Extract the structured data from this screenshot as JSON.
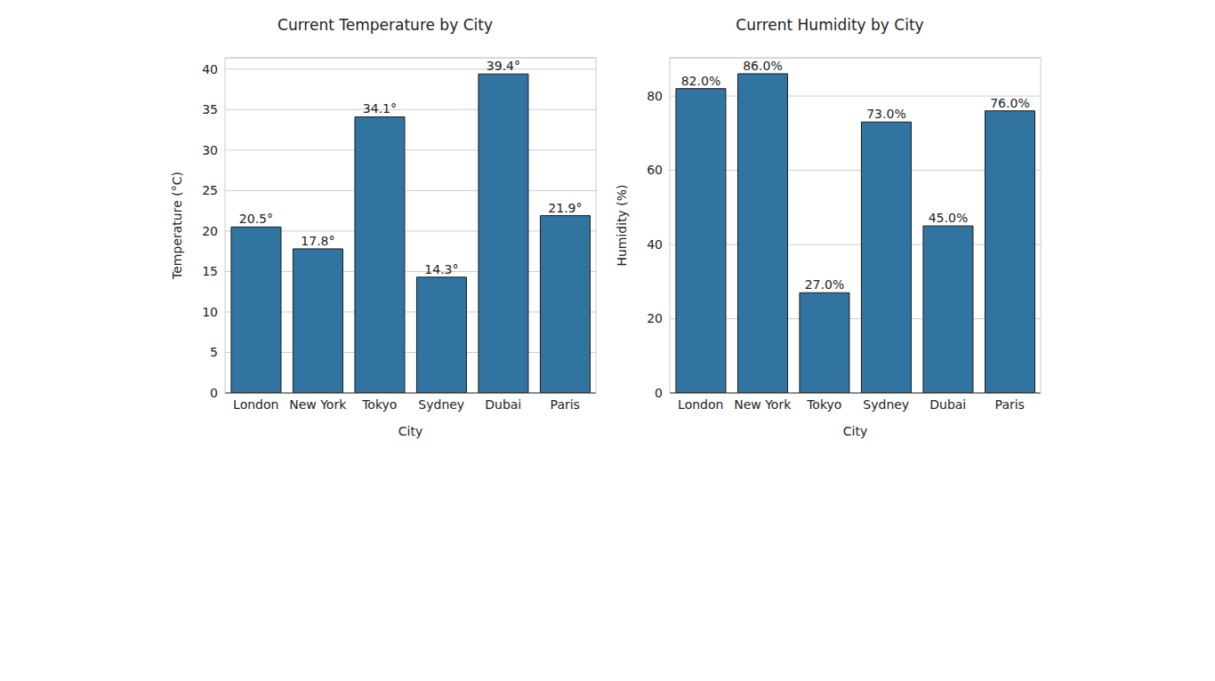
{
  "chart_data": [
    {
      "type": "bar",
      "title": "Current Temperature by City",
      "x_label": "City",
      "y_label": "Temperature (°C)",
      "categories": [
        "London",
        "New York",
        "Tokyo",
        "Sydney",
        "Dubai",
        "Paris"
      ],
      "values": [
        20.5,
        17.8,
        34.1,
        14.3,
        39.4,
        21.9
      ],
      "value_labels": [
        "20.5°",
        "17.8°",
        "34.1°",
        "14.3°",
        "39.4°",
        "21.9°"
      ],
      "color": "#3274a1",
      "ylim": [
        0,
        41.4
      ],
      "yticks": [
        0,
        5,
        10,
        15,
        20,
        25,
        30,
        35,
        40
      ],
      "grid": true,
      "data_labels": true
    },
    {
      "type": "bar",
      "title": "Current Humidity by City",
      "x_label": "City",
      "y_label": "Humidity (%)",
      "categories": [
        "London",
        "New York",
        "Tokyo",
        "Sydney",
        "Dubai",
        "Paris"
      ],
      "values": [
        82,
        86,
        27,
        73,
        45,
        76
      ],
      "value_labels": [
        "82.0%",
        "86.0%",
        "27.0%",
        "73.0%",
        "45.0%",
        "76.0%"
      ],
      "color": "#3274a1",
      "ylim": [
        0,
        90.3
      ],
      "yticks": [
        0,
        20,
        40,
        60,
        80
      ],
      "grid": true,
      "data_labels": true
    }
  ]
}
